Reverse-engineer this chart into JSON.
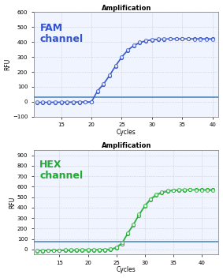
{
  "title": "Amplification",
  "fam_label": "FAM\nchannel",
  "hex_label": "HEX\nchannel",
  "fam_color": "#3355cc",
  "hex_color": "#22aa33",
  "threshold_color": "#5588bb",
  "ylabel": "RFU",
  "xlabel": "Cycles",
  "fam_ylim": [
    -100,
    600
  ],
  "hex_ylim": [
    -50,
    950
  ],
  "fam_yticks": [
    -100,
    0,
    100,
    200,
    300,
    400,
    500,
    600
  ],
  "hex_yticks": [
    0,
    100,
    200,
    300,
    400,
    500,
    600,
    700,
    800,
    900
  ],
  "fam_xticks": [
    15,
    20,
    25,
    30,
    35,
    40
  ],
  "hex_xticks": [
    15,
    20,
    25,
    30,
    35,
    40
  ],
  "fam_xlim": [
    10.5,
    41
  ],
  "hex_xlim": [
    10.5,
    43
  ],
  "fam_threshold": 30,
  "hex_threshold": 75,
  "background": "#f0f4ff",
  "grid_color": "#bbbbbb"
}
